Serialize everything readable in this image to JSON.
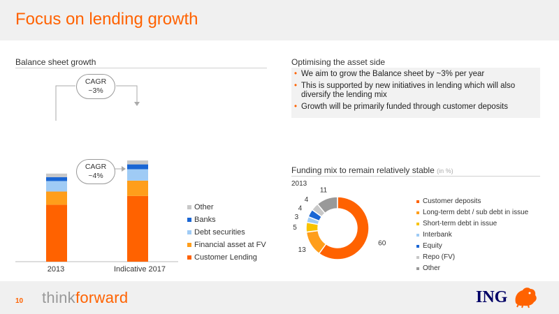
{
  "header": {
    "title": "Focus on lending growth"
  },
  "left_section": {
    "title": "Balance sheet growth"
  },
  "right_section": {
    "title": "Optimising the asset side",
    "bullets": [
      "We aim to grow the Balance sheet by ~3% per year",
      "This is supported by new initiatives in lending which will also diversify the lending mix",
      "Growth will be primarily funded through customer deposits"
    ]
  },
  "funding": {
    "title": "Funding mix to remain relatively stable",
    "unit": "(in %)",
    "year": "2013"
  },
  "cagr": {
    "top_line1": "CAGR",
    "top_line2": "~3%",
    "bottom_line1": "CAGR",
    "bottom_line2": "~4%"
  },
  "chart_data": [
    {
      "type": "bar",
      "stacked": true,
      "title": "Balance sheet growth",
      "categories": [
        "2013",
        "Indicative 2017"
      ],
      "series": [
        {
          "name": "Customer Lending",
          "color": "#ff6200",
          "values": [
            130,
            150
          ]
        },
        {
          "name": "Financial asset at FV",
          "color": "#ff9e1b",
          "values": [
            30,
            35
          ]
        },
        {
          "name": "Debt securities",
          "color": "#9fcbf5",
          "values": [
            24,
            26
          ]
        },
        {
          "name": "Banks",
          "color": "#1a66d4",
          "values": [
            9,
            11
          ]
        },
        {
          "name": "Other",
          "color": "#c8c8c8",
          "values": [
            8,
            9
          ]
        }
      ]
    },
    {
      "type": "pie",
      "donut": true,
      "title": "Funding mix to remain relatively stable",
      "labels": [
        "Customer deposits",
        "Long-term debt / sub debt in issue",
        "Short-term debt  in issue",
        "Interbank",
        "Equity",
        "Repo (FV)",
        "Other"
      ],
      "values": [
        60,
        13,
        5,
        3,
        4,
        4,
        11
      ],
      "colors": [
        "#ff6200",
        "#ff9e1b",
        "#f8c300",
        "#9fcbf5",
        "#1a66d4",
        "#c8c8c8",
        "#999999"
      ]
    }
  ],
  "footer": {
    "page": "10",
    "brand_think": "think",
    "brand_forward": "forward",
    "logo": "ING",
    "logo_icon": "lion-icon"
  }
}
